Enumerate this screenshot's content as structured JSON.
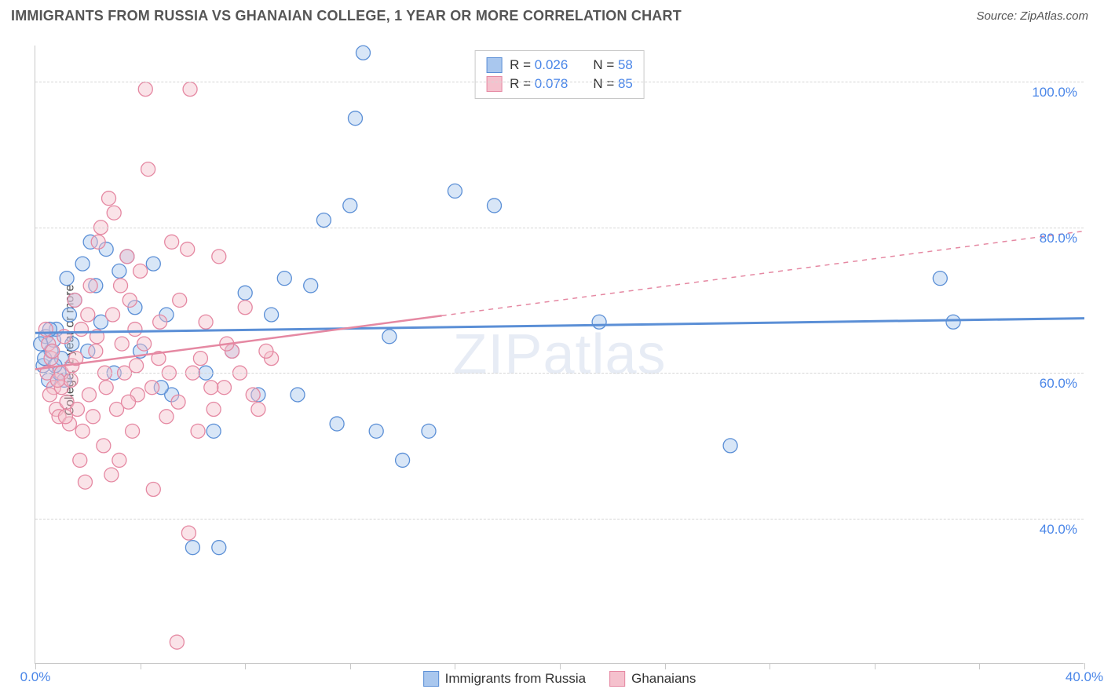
{
  "header": {
    "title": "IMMIGRANTS FROM RUSSIA VS GHANAIAN COLLEGE, 1 YEAR OR MORE CORRELATION CHART",
    "source": "Source: ZipAtlas.com"
  },
  "chart": {
    "type": "scatter",
    "ylabel": "College, 1 year or more",
    "watermark": "ZIPatlas",
    "background_color": "#ffffff",
    "grid_color": "#d6d6d6",
    "axis_color": "#c8c8c8",
    "label_color": "#4a86e8",
    "xlim": [
      0,
      40
    ],
    "ylim": [
      20,
      105
    ],
    "xticks": [
      0,
      4,
      8,
      12,
      16,
      20,
      24,
      28,
      32,
      36,
      40
    ],
    "xtick_labels": {
      "0": "0.0%",
      "40": "40.0%"
    },
    "yticks": [
      40,
      60,
      80,
      100
    ],
    "ytick_labels": {
      "40": "40.0%",
      "60": "60.0%",
      "80": "80.0%",
      "100": "100.0%"
    },
    "marker_radius": 9,
    "marker_opacity": 0.45,
    "series": [
      {
        "id": "russia",
        "label": "Immigrants from Russia",
        "color_fill": "#a9c7ee",
        "color_stroke": "#5b8fd6",
        "r_value": "0.026",
        "n_value": "58",
        "trend": {
          "y_at_xmin": 65.5,
          "y_at_xmax": 67.5,
          "solid_until_x": 40,
          "stroke_width": 3
        },
        "points": [
          [
            0.3,
            61
          ],
          [
            0.4,
            65
          ],
          [
            0.5,
            59
          ],
          [
            0.6,
            63
          ],
          [
            0.7,
            64.5
          ],
          [
            0.8,
            66
          ],
          [
            1.0,
            62
          ],
          [
            1.2,
            73
          ],
          [
            1.3,
            68
          ],
          [
            1.4,
            64
          ],
          [
            1.5,
            70
          ],
          [
            1.8,
            75
          ],
          [
            2.0,
            63
          ],
          [
            2.1,
            78
          ],
          [
            2.3,
            72
          ],
          [
            2.5,
            67
          ],
          [
            2.7,
            77
          ],
          [
            3.0,
            60
          ],
          [
            3.2,
            74
          ],
          [
            3.5,
            76
          ],
          [
            4.0,
            63
          ],
          [
            4.5,
            75
          ],
          [
            5.0,
            68
          ],
          [
            5.2,
            57
          ],
          [
            6.0,
            36
          ],
          [
            6.5,
            60
          ],
          [
            7.0,
            36
          ],
          [
            7.5,
            63
          ],
          [
            8.0,
            71
          ],
          [
            8.5,
            57
          ],
          [
            9.0,
            68
          ],
          [
            10.0,
            57
          ],
          [
            10.5,
            72
          ],
          [
            11.0,
            81
          ],
          [
            11.5,
            53
          ],
          [
            12.0,
            83
          ],
          [
            12.2,
            95
          ],
          [
            12.5,
            104
          ],
          [
            13.0,
            52
          ],
          [
            13.5,
            65
          ],
          [
            14.0,
            48
          ],
          [
            15.0,
            52
          ],
          [
            16.0,
            85
          ],
          [
            17.5,
            83
          ],
          [
            21.5,
            67
          ],
          [
            26.5,
            50
          ],
          [
            34.5,
            73
          ],
          [
            35.0,
            67
          ],
          [
            9.5,
            73
          ],
          [
            6.8,
            52
          ],
          [
            4.8,
            58
          ],
          [
            3.8,
            69
          ],
          [
            0.9,
            60
          ],
          [
            1.1,
            59
          ],
          [
            0.2,
            64
          ],
          [
            0.35,
            62
          ],
          [
            0.55,
            66
          ],
          [
            0.75,
            61
          ]
        ]
      },
      {
        "id": "ghana",
        "label": "Ghanaians",
        "color_fill": "#f5c1cd",
        "color_stroke": "#e588a2",
        "r_value": "0.078",
        "n_value": "85",
        "trend": {
          "y_at_xmin": 60.5,
          "y_at_xmax": 79.5,
          "solid_until_x": 15.5,
          "stroke_width": 2.5
        },
        "points": [
          [
            0.5,
            64
          ],
          [
            0.6,
            62
          ],
          [
            0.7,
            58
          ],
          [
            0.8,
            55
          ],
          [
            0.9,
            54
          ],
          [
            1.0,
            60
          ],
          [
            1.1,
            65
          ],
          [
            1.2,
            56
          ],
          [
            1.3,
            53
          ],
          [
            1.4,
            61
          ],
          [
            1.5,
            70
          ],
          [
            1.6,
            55
          ],
          [
            1.7,
            48
          ],
          [
            1.8,
            52
          ],
          [
            1.9,
            45
          ],
          [
            2.0,
            68
          ],
          [
            2.1,
            72
          ],
          [
            2.2,
            54
          ],
          [
            2.3,
            63
          ],
          [
            2.4,
            78
          ],
          [
            2.5,
            80
          ],
          [
            2.6,
            50
          ],
          [
            2.7,
            58
          ],
          [
            2.8,
            84
          ],
          [
            2.9,
            46
          ],
          [
            3.0,
            82
          ],
          [
            3.1,
            55
          ],
          [
            3.2,
            48
          ],
          [
            3.3,
            64
          ],
          [
            3.4,
            60
          ],
          [
            3.5,
            76
          ],
          [
            3.6,
            70
          ],
          [
            3.7,
            52
          ],
          [
            3.8,
            66
          ],
          [
            3.9,
            57
          ],
          [
            4.0,
            74
          ],
          [
            4.2,
            99
          ],
          [
            4.3,
            88
          ],
          [
            4.5,
            44
          ],
          [
            4.7,
            62
          ],
          [
            5.0,
            54
          ],
          [
            5.2,
            78
          ],
          [
            5.4,
            23
          ],
          [
            5.5,
            70
          ],
          [
            5.8,
            77
          ],
          [
            5.9,
            99
          ],
          [
            6.0,
            60
          ],
          [
            6.2,
            52
          ],
          [
            6.5,
            67
          ],
          [
            6.8,
            55
          ],
          [
            7.0,
            76
          ],
          [
            7.2,
            58
          ],
          [
            7.5,
            63
          ],
          [
            8.0,
            69
          ],
          [
            8.5,
            55
          ],
          [
            9.0,
            62
          ],
          [
            1.0,
            58
          ],
          [
            1.15,
            54
          ],
          [
            1.35,
            59
          ],
          [
            1.55,
            62
          ],
          [
            1.75,
            66
          ],
          [
            2.05,
            57
          ],
          [
            2.35,
            65
          ],
          [
            2.65,
            60
          ],
          [
            2.95,
            68
          ],
          [
            3.25,
            72
          ],
          [
            3.55,
            56
          ],
          [
            3.85,
            61
          ],
          [
            4.15,
            64
          ],
          [
            4.45,
            58
          ],
          [
            4.75,
            67
          ],
          [
            5.1,
            60
          ],
          [
            5.45,
            56
          ],
          [
            5.85,
            38
          ],
          [
            6.3,
            62
          ],
          [
            6.7,
            58
          ],
          [
            7.3,
            64
          ],
          [
            7.8,
            60
          ],
          [
            8.3,
            57
          ],
          [
            8.8,
            63
          ],
          [
            0.4,
            66
          ],
          [
            0.45,
            60
          ],
          [
            0.55,
            57
          ],
          [
            0.65,
            63
          ],
          [
            0.85,
            59
          ]
        ]
      }
    ],
    "legend_bottom": [
      {
        "series": "russia"
      },
      {
        "series": "ghana"
      }
    ]
  }
}
